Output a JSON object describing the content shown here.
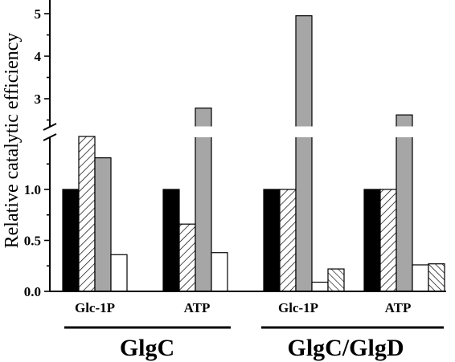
{
  "chart_data": {
    "type": "bar",
    "ylabel": "Relative catalytic efficiency",
    "y_axis_break": [
      1.4,
      2.4
    ],
    "yticks_lower": [
      "0.0",
      "0.5",
      "1.0"
    ],
    "yticks_upper": [
      "3",
      "4",
      "5"
    ],
    "ylim": [
      0,
      5.3
    ],
    "grid": false,
    "legend": "none",
    "categories": [
      "Glc-1P",
      "ATP",
      "Glc-1P",
      "ATP"
    ],
    "groups": [
      {
        "label": "GlgC",
        "categories": [
          0,
          1
        ]
      },
      {
        "label": "GlgC/GlgD",
        "categories": [
          2,
          3
        ]
      }
    ],
    "series": [
      {
        "fill": "#000000",
        "pattern": "solid",
        "values": [
          1.0,
          1.0,
          1.0,
          1.0
        ]
      },
      {
        "fill": "#ffffff",
        "pattern": "hatch-forward",
        "values": [
          1.43,
          0.66,
          1.0,
          1.0
        ]
      },
      {
        "fill": "#a6a6a6",
        "pattern": "solid",
        "values": [
          1.31,
          2.78,
          4.95,
          2.62
        ]
      },
      {
        "fill": "#ffffff",
        "pattern": "none",
        "values": [
          0.36,
          0.38,
          0.09,
          0.26
        ]
      },
      {
        "fill": "#ffffff",
        "pattern": "hatch-backward",
        "values": [
          null,
          null,
          0.22,
          0.27
        ]
      }
    ]
  }
}
